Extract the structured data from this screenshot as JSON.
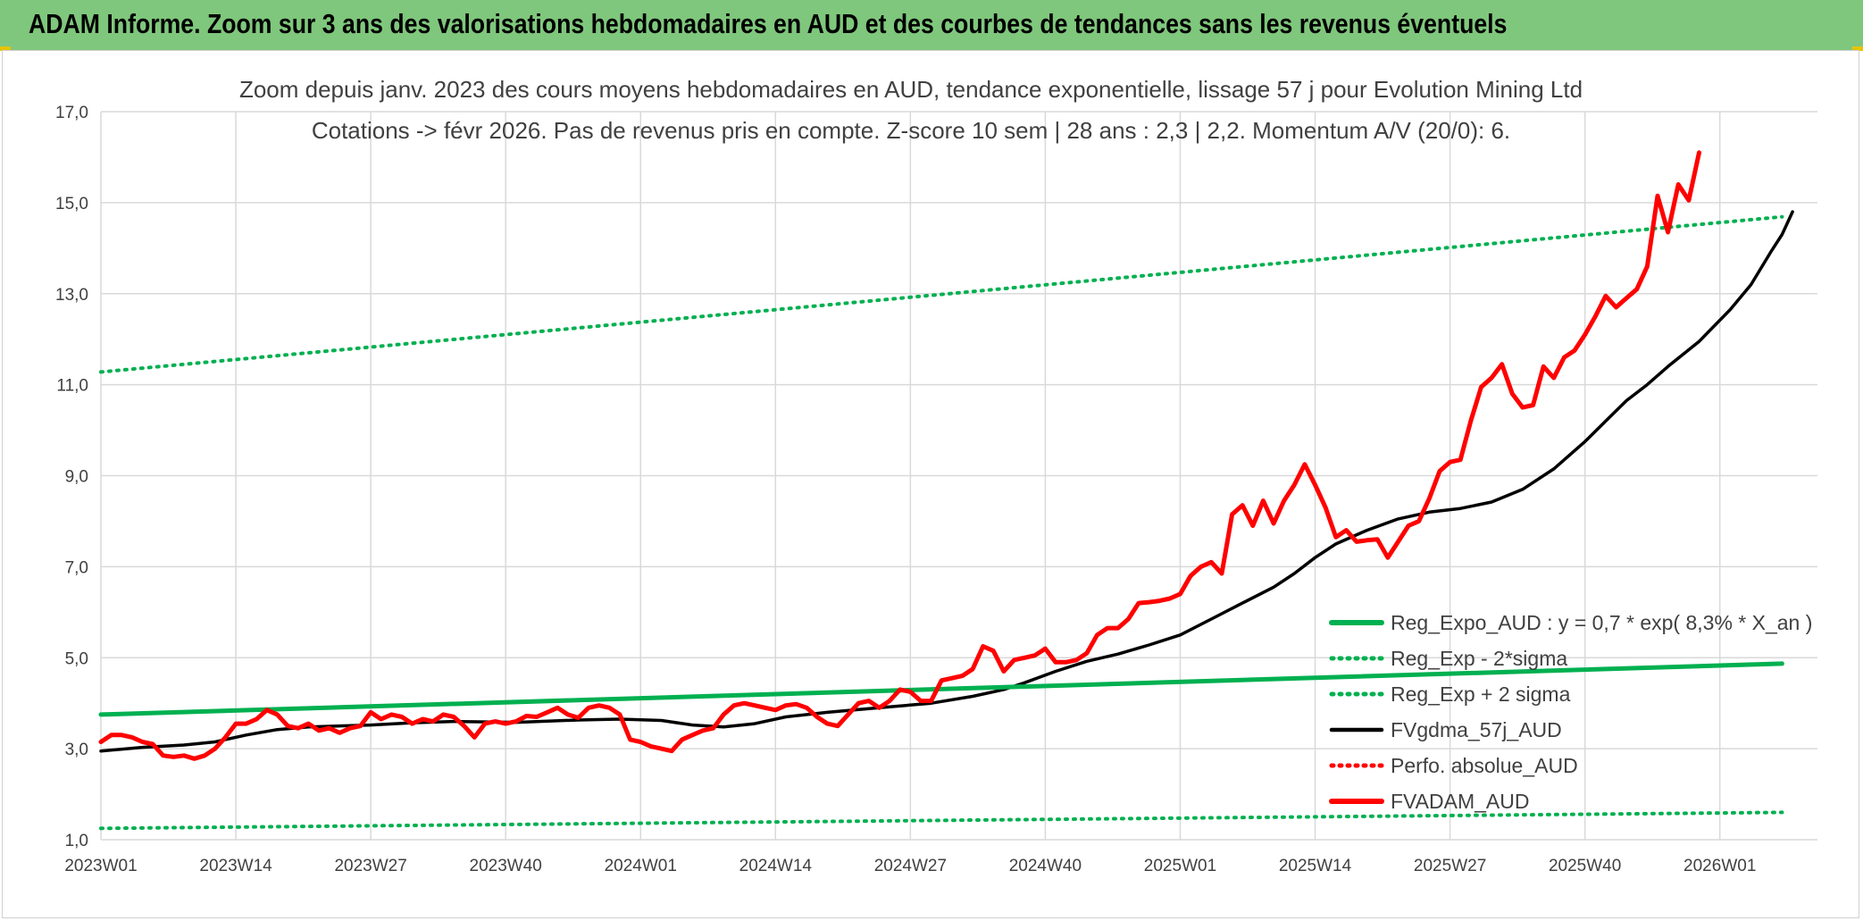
{
  "banner": {
    "title": "ADAM Informe. Zoom sur 3 ans des valorisations hebdomadaires en AUD et des courbes de tendances sans les revenus éventuels",
    "background_color": "#7fc77c"
  },
  "chart_data": {
    "type": "line",
    "title_line1": "Zoom depuis janv. 2023 des cours moyens hebdomadaires en AUD, tendance exponentielle, lissage 57 j pour Evolution Mining Ltd",
    "title_line2": "Cotations -> févr 2026. Pas de revenus pris en compte. Z-score 10 sem | 28 ans : 2,3 | 2,2. Momentum A/V (20/0): 6.",
    "x_unit": "week",
    "x_start": "2023W01",
    "x_count": 163,
    "x_ticks": [
      {
        "index": 0,
        "label": "2023W01"
      },
      {
        "index": 13,
        "label": "2023W14"
      },
      {
        "index": 26,
        "label": "2023W27"
      },
      {
        "index": 39,
        "label": "2023W40"
      },
      {
        "index": 52,
        "label": "2024W01"
      },
      {
        "index": 65,
        "label": "2024W14"
      },
      {
        "index": 78,
        "label": "2024W27"
      },
      {
        "index": 91,
        "label": "2024W40"
      },
      {
        "index": 104,
        "label": "2025W01"
      },
      {
        "index": 117,
        "label": "2025W14"
      },
      {
        "index": 130,
        "label": "2025W27"
      },
      {
        "index": 143,
        "label": "2025W40"
      },
      {
        "index": 156,
        "label": "2026W01"
      }
    ],
    "y_ticks": [
      "1,0",
      "3,0",
      "5,0",
      "7,0",
      "9,0",
      "11,0",
      "13,0",
      "15,0",
      "17,0"
    ],
    "ylim": [
      1,
      17
    ],
    "grid": true,
    "legend_position": "bottom-right",
    "series": [
      {
        "name": "Reg_Expo_AUD : y = 0,7 * exp( 8,3% *  X_an )",
        "color": "#00b050",
        "style": "solid-thick",
        "points": [
          [
            0,
            3.75
          ],
          [
            162,
            4.87
          ]
        ]
      },
      {
        "name": "Reg_Exp - 2*sigma",
        "color": "#00b050",
        "style": "dotted",
        "points": [
          [
            0,
            1.25
          ],
          [
            162,
            1.6
          ]
        ]
      },
      {
        "name": "Reg_Exp + 2 sigma",
        "color": "#00b050",
        "style": "dotted",
        "points": [
          [
            0,
            11.28
          ],
          [
            162,
            14.69
          ]
        ]
      },
      {
        "name": "FVgdma_57j_AUD",
        "color": "#000000",
        "style": "solid",
        "points": [
          [
            0,
            2.95
          ],
          [
            4,
            3.03
          ],
          [
            8,
            3.08
          ],
          [
            11,
            3.15
          ],
          [
            14,
            3.3
          ],
          [
            17,
            3.42
          ],
          [
            20,
            3.48
          ],
          [
            26,
            3.52
          ],
          [
            30,
            3.57
          ],
          [
            34,
            3.6
          ],
          [
            40,
            3.58
          ],
          [
            46,
            3.63
          ],
          [
            50,
            3.65
          ],
          [
            54,
            3.62
          ],
          [
            57,
            3.52
          ],
          [
            60,
            3.48
          ],
          [
            63,
            3.55
          ],
          [
            66,
            3.7
          ],
          [
            70,
            3.8
          ],
          [
            75,
            3.9
          ],
          [
            80,
            4.0
          ],
          [
            84,
            4.15
          ],
          [
            87,
            4.3
          ],
          [
            89,
            4.45
          ],
          [
            92,
            4.7
          ],
          [
            95,
            4.92
          ],
          [
            98,
            5.08
          ],
          [
            101,
            5.28
          ],
          [
            104,
            5.5
          ],
          [
            107,
            5.85
          ],
          [
            110,
            6.2
          ],
          [
            113,
            6.55
          ],
          [
            115,
            6.85
          ],
          [
            117,
            7.2
          ],
          [
            119,
            7.5
          ],
          [
            122,
            7.8
          ],
          [
            125,
            8.05
          ],
          [
            128,
            8.2
          ],
          [
            131,
            8.28
          ],
          [
            134,
            8.42
          ],
          [
            137,
            8.7
          ],
          [
            140,
            9.15
          ],
          [
            143,
            9.75
          ],
          [
            145,
            10.2
          ],
          [
            147,
            10.65
          ],
          [
            149,
            11.0
          ],
          [
            151,
            11.4
          ],
          [
            154,
            11.95
          ],
          [
            157,
            12.65
          ],
          [
            159,
            13.2
          ],
          [
            161,
            13.95
          ],
          [
            162,
            14.3
          ],
          [
            163,
            14.8
          ]
        ]
      },
      {
        "name": "Perfo. absolue_AUD",
        "color": "#ff0000",
        "style": "dotted",
        "points": []
      },
      {
        "name": "FVADAM_AUD",
        "color": "#ff0000",
        "style": "solid-thick",
        "points": [
          [
            0,
            3.15
          ],
          [
            1,
            3.3
          ],
          [
            2,
            3.3
          ],
          [
            3,
            3.25
          ],
          [
            4,
            3.15
          ],
          [
            5,
            3.1
          ],
          [
            6,
            2.85
          ],
          [
            7,
            2.82
          ],
          [
            8,
            2.85
          ],
          [
            9,
            2.78
          ],
          [
            10,
            2.85
          ],
          [
            11,
            3.0
          ],
          [
            12,
            3.25
          ],
          [
            13,
            3.55
          ],
          [
            14,
            3.55
          ],
          [
            15,
            3.65
          ],
          [
            16,
            3.85
          ],
          [
            17,
            3.75
          ],
          [
            18,
            3.5
          ],
          [
            19,
            3.45
          ],
          [
            20,
            3.55
          ],
          [
            21,
            3.4
          ],
          [
            22,
            3.45
          ],
          [
            23,
            3.35
          ],
          [
            24,
            3.45
          ],
          [
            25,
            3.5
          ],
          [
            26,
            3.8
          ],
          [
            27,
            3.65
          ],
          [
            28,
            3.75
          ],
          [
            29,
            3.7
          ],
          [
            30,
            3.55
          ],
          [
            31,
            3.65
          ],
          [
            32,
            3.6
          ],
          [
            33,
            3.75
          ],
          [
            34,
            3.7
          ],
          [
            35,
            3.5
          ],
          [
            36,
            3.25
          ],
          [
            37,
            3.55
          ],
          [
            38,
            3.6
          ],
          [
            39,
            3.55
          ],
          [
            40,
            3.6
          ],
          [
            41,
            3.72
          ],
          [
            42,
            3.7
          ],
          [
            43,
            3.8
          ],
          [
            44,
            3.9
          ],
          [
            45,
            3.75
          ],
          [
            46,
            3.68
          ],
          [
            47,
            3.9
          ],
          [
            48,
            3.95
          ],
          [
            49,
            3.9
          ],
          [
            50,
            3.75
          ],
          [
            51,
            3.2
          ],
          [
            52,
            3.15
          ],
          [
            53,
            3.05
          ],
          [
            54,
            3.0
          ],
          [
            55,
            2.95
          ],
          [
            56,
            3.2
          ],
          [
            57,
            3.3
          ],
          [
            58,
            3.4
          ],
          [
            59,
            3.45
          ],
          [
            60,
            3.75
          ],
          [
            61,
            3.95
          ],
          [
            62,
            4.0
          ],
          [
            63,
            3.95
          ],
          [
            64,
            3.9
          ],
          [
            65,
            3.85
          ],
          [
            66,
            3.95
          ],
          [
            67,
            3.98
          ],
          [
            68,
            3.9
          ],
          [
            69,
            3.7
          ],
          [
            70,
            3.55
          ],
          [
            71,
            3.5
          ],
          [
            72,
            3.75
          ],
          [
            73,
            4.0
          ],
          [
            74,
            4.05
          ],
          [
            75,
            3.9
          ],
          [
            76,
            4.05
          ],
          [
            77,
            4.3
          ],
          [
            78,
            4.25
          ],
          [
            79,
            4.05
          ],
          [
            80,
            4.05
          ],
          [
            81,
            4.5
          ],
          [
            82,
            4.55
          ],
          [
            83,
            4.6
          ],
          [
            84,
            4.75
          ],
          [
            85,
            5.25
          ],
          [
            86,
            5.15
          ],
          [
            87,
            4.7
          ],
          [
            88,
            4.95
          ],
          [
            89,
            5.0
          ],
          [
            90,
            5.05
          ],
          [
            91,
            5.2
          ],
          [
            92,
            4.9
          ],
          [
            93,
            4.9
          ],
          [
            94,
            4.95
          ],
          [
            95,
            5.1
          ],
          [
            96,
            5.5
          ],
          [
            97,
            5.65
          ],
          [
            98,
            5.65
          ],
          [
            99,
            5.85
          ],
          [
            100,
            6.2
          ],
          [
            101,
            6.22
          ],
          [
            102,
            6.25
          ],
          [
            103,
            6.3
          ],
          [
            104,
            6.4
          ],
          [
            105,
            6.8
          ],
          [
            106,
            7.0
          ],
          [
            107,
            7.1
          ],
          [
            108,
            6.85
          ],
          [
            109,
            8.15
          ],
          [
            110,
            8.35
          ],
          [
            111,
            7.9
          ],
          [
            112,
            8.45
          ],
          [
            113,
            7.95
          ],
          [
            114,
            8.45
          ],
          [
            115,
            8.8
          ],
          [
            116,
            9.25
          ],
          [
            117,
            8.8
          ],
          [
            118,
            8.3
          ],
          [
            119,
            7.65
          ],
          [
            120,
            7.8
          ],
          [
            121,
            7.55
          ],
          [
            122,
            7.58
          ],
          [
            123,
            7.6
          ],
          [
            124,
            7.2
          ],
          [
            125,
            7.55
          ],
          [
            126,
            7.9
          ],
          [
            127,
            8.0
          ],
          [
            128,
            8.5
          ],
          [
            129,
            9.1
          ],
          [
            130,
            9.3
          ],
          [
            131,
            9.35
          ],
          [
            132,
            10.2
          ],
          [
            133,
            10.95
          ],
          [
            134,
            11.15
          ],
          [
            135,
            11.45
          ],
          [
            136,
            10.8
          ],
          [
            137,
            10.5
          ],
          [
            138,
            10.55
          ],
          [
            139,
            11.4
          ],
          [
            140,
            11.15
          ],
          [
            141,
            11.6
          ],
          [
            142,
            11.75
          ],
          [
            143,
            12.1
          ],
          [
            144,
            12.5
          ],
          [
            145,
            12.95
          ],
          [
            146,
            12.7
          ],
          [
            147,
            12.9
          ],
          [
            148,
            13.1
          ],
          [
            149,
            13.6
          ],
          [
            150,
            15.15
          ],
          [
            151,
            14.35
          ],
          [
            152,
            15.4
          ],
          [
            153,
            15.05
          ],
          [
            154,
            16.1
          ]
        ]
      }
    ]
  }
}
